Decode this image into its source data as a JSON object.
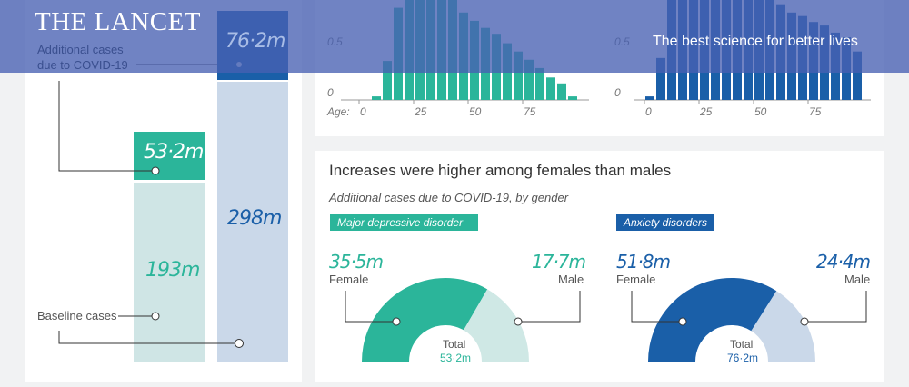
{
  "banner": {
    "logo": "THE LANCET",
    "tagline": "The best science for better lives"
  },
  "left_panel": {
    "added_label_line1": "Additional cases",
    "added_label_line2": "due to COVID-19",
    "baseline_label": "Baseline cases",
    "mdd": {
      "additional": "53·2m",
      "baseline": "193m",
      "color": "#2bb59a",
      "light": "#cfe5e5"
    },
    "anx": {
      "additional": "76·2m",
      "baseline": "298m",
      "color": "#1a5fa8",
      "light": "#cad8e9"
    }
  },
  "chart_data": [
    {
      "type": "bar",
      "xlabel": "Age:",
      "x": [
        5,
        10,
        15,
        20,
        25,
        30,
        35,
        40,
        45,
        50,
        55,
        60,
        65,
        70,
        75,
        80,
        85,
        90,
        95
      ],
      "values": [
        0.03,
        0.33,
        0.78,
        0.9,
        0.95,
        0.95,
        0.92,
        0.88,
        0.74,
        0.67,
        0.61,
        0.56,
        0.48,
        0.41,
        0.34,
        0.27,
        0.19,
        0.14,
        0.03
      ],
      "yticks": [
        "0",
        "0.5"
      ],
      "xticks": [
        "0",
        "25",
        "50",
        "75"
      ],
      "color": "#2bb59a"
    },
    {
      "type": "bar",
      "x": [
        0,
        5,
        10,
        15,
        20,
        25,
        30,
        35,
        40,
        45,
        50,
        55,
        60,
        65,
        70,
        75,
        80,
        85,
        90,
        95
      ],
      "values": [
        0.03,
        0.355,
        0.9,
        0.95,
        1.0,
        1.0,
        1.0,
        0.98,
        0.95,
        0.92,
        0.88,
        0.85,
        0.81,
        0.74,
        0.71,
        0.66,
        0.63,
        0.57,
        0.53,
        0.41
      ],
      "yticks": [
        "0",
        "0.5"
      ],
      "xticks": [
        "0",
        "25",
        "50",
        "75"
      ],
      "color": "#1a5fa8"
    }
  ],
  "gender": {
    "title": "Increases were higher among females than males",
    "subtitle": "Additional cases due to COVID-19, by gender",
    "mdd": {
      "tag": "Major depressive disorder",
      "female_value": "35·5m",
      "female_label": "Female",
      "male_value": "17·7m",
      "male_label": "Male",
      "total_label": "Total",
      "total": "53·2m",
      "female": 35.5,
      "male": 17.7,
      "color": "#2bb59a",
      "light": "#cfe8e5"
    },
    "anx": {
      "tag": "Anxiety disorders",
      "female_value": "51·8m",
      "female_label": "Female",
      "male_value": "24·4m",
      "male_label": "Male",
      "total_label": "Total",
      "total": "76·2m",
      "female": 51.8,
      "male": 24.4,
      "color": "#1a5fa8",
      "light": "#cad8e9"
    }
  }
}
